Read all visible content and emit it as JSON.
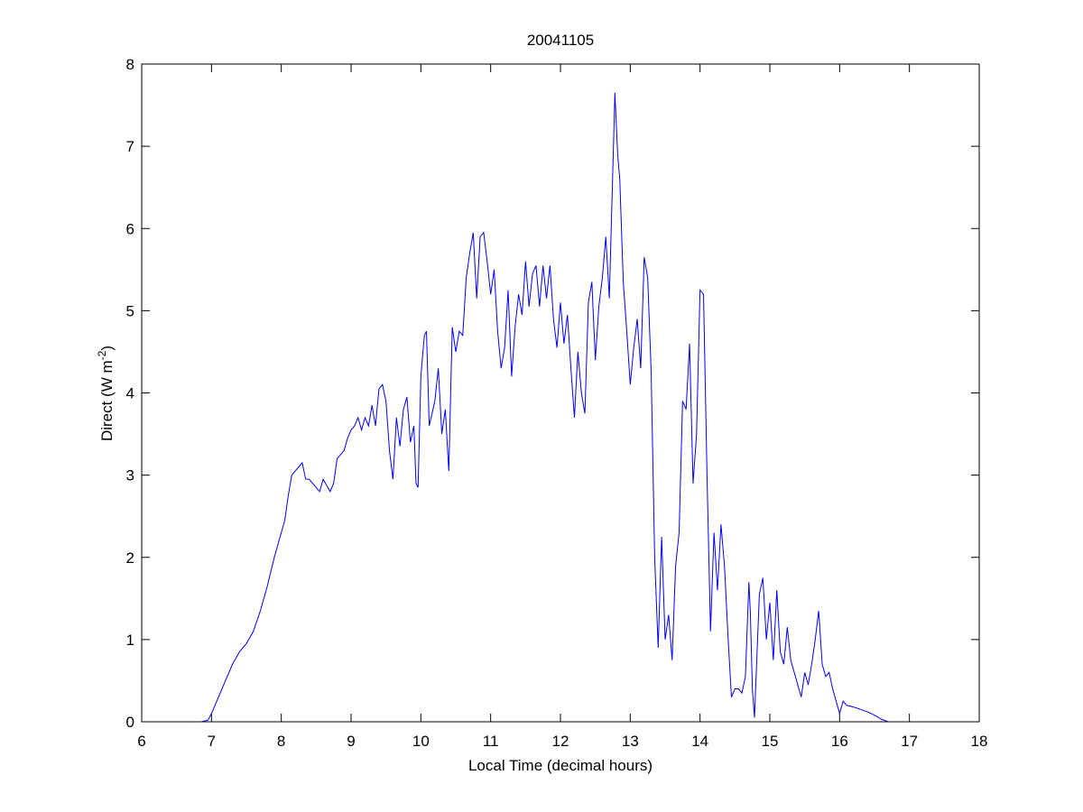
{
  "chart_data": {
    "type": "line",
    "title": "20041105",
    "x_label": "Local Time (decimal hours)",
    "y_label": {
      "text": "Direct (W m",
      "superscript": "-2",
      "suffix": ")"
    },
    "xlim": [
      6,
      18
    ],
    "xticks": [
      6,
      7,
      8,
      9,
      10,
      11,
      12,
      13,
      14,
      15,
      16,
      17,
      18
    ],
    "ylim": [
      0,
      8
    ],
    "yticks": [
      0,
      1,
      2,
      3,
      4,
      5,
      6,
      7,
      8
    ],
    "grid": false,
    "series": [
      {
        "color": "#0000ff",
        "x": [
          6.85,
          6.95,
          7.0,
          7.1,
          7.2,
          7.3,
          7.4,
          7.5,
          7.6,
          7.7,
          7.8,
          7.9,
          8.0,
          8.05,
          8.1,
          8.15,
          8.2,
          8.25,
          8.3,
          8.35,
          8.4,
          8.5,
          8.55,
          8.6,
          8.7,
          8.75,
          8.8,
          8.9,
          8.95,
          9.0,
          9.05,
          9.1,
          9.15,
          9.2,
          9.25,
          9.3,
          9.35,
          9.4,
          9.45,
          9.5,
          9.55,
          9.6,
          9.65,
          9.7,
          9.75,
          9.8,
          9.85,
          9.9,
          9.93,
          9.96,
          10.0,
          10.05,
          10.08,
          10.12,
          10.2,
          10.25,
          10.3,
          10.35,
          10.4,
          10.45,
          10.5,
          10.55,
          10.6,
          10.65,
          10.7,
          10.75,
          10.8,
          10.85,
          10.9,
          10.95,
          11.0,
          11.05,
          11.1,
          11.15,
          11.2,
          11.25,
          11.3,
          11.35,
          11.4,
          11.45,
          11.5,
          11.55,
          11.6,
          11.65,
          11.7,
          11.75,
          11.8,
          11.85,
          11.9,
          11.95,
          12.0,
          12.05,
          12.1,
          12.15,
          12.2,
          12.25,
          12.3,
          12.35,
          12.4,
          12.45,
          12.5,
          12.55,
          12.6,
          12.65,
          12.7,
          12.75,
          12.78,
          12.82,
          12.85,
          12.9,
          12.95,
          13.0,
          13.05,
          13.1,
          13.15,
          13.2,
          13.25,
          13.3,
          13.35,
          13.4,
          13.45,
          13.5,
          13.55,
          13.6,
          13.65,
          13.7,
          13.75,
          13.8,
          13.85,
          13.9,
          13.95,
          14.0,
          14.05,
          14.1,
          14.15,
          14.2,
          14.25,
          14.3,
          14.35,
          14.4,
          14.45,
          14.5,
          14.55,
          14.6,
          14.65,
          14.7,
          14.72,
          14.75,
          14.78,
          14.85,
          14.9,
          14.95,
          15.0,
          15.05,
          15.1,
          15.15,
          15.2,
          15.25,
          15.3,
          15.35,
          15.4,
          15.45,
          15.5,
          15.55,
          15.6,
          15.65,
          15.7,
          15.75,
          15.8,
          15.85,
          15.9,
          15.95,
          16.0,
          16.05,
          16.1,
          16.2,
          16.3,
          16.4,
          16.5,
          16.6,
          16.7
        ],
        "values": [
          0,
          0.02,
          0.1,
          0.3,
          0.5,
          0.7,
          0.85,
          0.95,
          1.1,
          1.35,
          1.65,
          2.0,
          2.3,
          2.45,
          2.75,
          3.0,
          3.05,
          3.1,
          3.15,
          2.95,
          2.95,
          2.85,
          2.8,
          2.95,
          2.8,
          2.9,
          3.2,
          3.3,
          3.45,
          3.55,
          3.6,
          3.7,
          3.55,
          3.7,
          3.6,
          3.85,
          3.6,
          4.05,
          4.1,
          3.9,
          3.3,
          2.95,
          3.7,
          3.35,
          3.8,
          3.95,
          3.4,
          3.6,
          2.9,
          2.85,
          4.2,
          4.7,
          4.75,
          3.6,
          3.9,
          4.3,
          3.5,
          3.8,
          3.05,
          4.8,
          4.5,
          4.75,
          4.7,
          5.4,
          5.7,
          5.95,
          5.15,
          5.9,
          5.95,
          5.6,
          5.2,
          5.5,
          4.75,
          4.3,
          4.55,
          5.25,
          4.2,
          4.8,
          5.2,
          4.95,
          5.6,
          5.05,
          5.45,
          5.55,
          5.05,
          5.55,
          5.15,
          5.55,
          4.9,
          4.55,
          5.1,
          4.6,
          4.95,
          4.3,
          3.7,
          4.5,
          4.0,
          3.75,
          5.1,
          5.35,
          4.4,
          5.05,
          5.4,
          5.9,
          5.15,
          6.7,
          7.65,
          6.9,
          6.6,
          5.35,
          4.75,
          4.1,
          4.55,
          4.9,
          4.3,
          5.65,
          5.4,
          4.25,
          2.0,
          0.9,
          2.25,
          1.0,
          1.3,
          0.75,
          1.9,
          2.3,
          3.9,
          3.8,
          4.6,
          2.9,
          3.5,
          5.25,
          5.2,
          3.0,
          1.1,
          2.3,
          1.6,
          2.4,
          1.9,
          1.05,
          0.3,
          0.4,
          0.4,
          0.35,
          0.55,
          1.7,
          1.35,
          0.4,
          0.05,
          1.55,
          1.75,
          1.0,
          1.45,
          0.75,
          1.6,
          0.85,
          0.7,
          1.15,
          0.75,
          0.6,
          0.45,
          0.3,
          0.6,
          0.45,
          0.7,
          1.0,
          1.35,
          0.7,
          0.55,
          0.6,
          0.4,
          0.25,
          0.1,
          0.25,
          0.2,
          0.18,
          0.15,
          0.12,
          0.08,
          0.03,
          0.0
        ]
      }
    ]
  }
}
